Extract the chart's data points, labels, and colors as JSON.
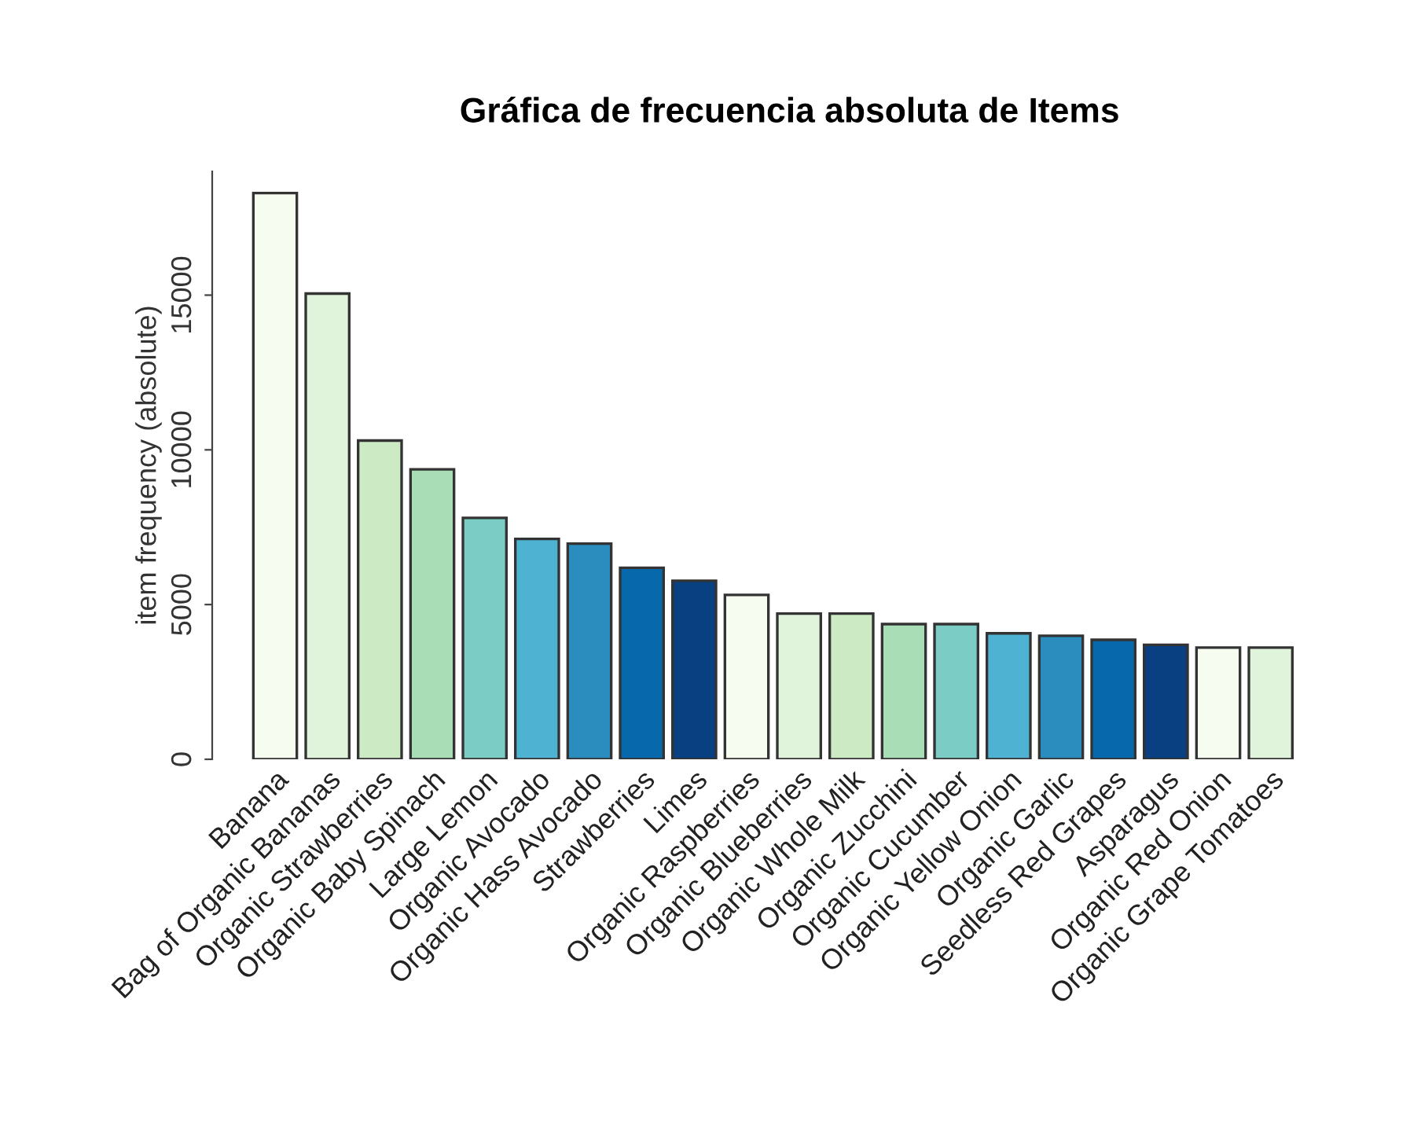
{
  "chart_data": {
    "type": "bar",
    "title": "Gráfica de frecuencia absoluta de Items",
    "ylabel": "item frequency (absolute)",
    "categories": [
      "Banana",
      "Bag of Organic Bananas",
      "Organic Strawberries",
      "Organic Baby Spinach",
      "Large Lemon",
      "Organic Avocado",
      "Organic Hass Avocado",
      "Strawberries",
      "Limes",
      "Organic Raspberries",
      "Organic Blueberries",
      "Organic Whole Milk",
      "Organic Zucchini",
      "Organic Cucumber",
      "Organic Yellow Onion",
      "Organic Garlic",
      "Seedless Red Grapes",
      "Asparagus",
      "Organic Red Onion",
      "Organic Grape Tomatoes"
    ],
    "values": [
      18300,
      15050,
      10300,
      9370,
      7800,
      7120,
      6970,
      6190,
      5770,
      5310,
      4710,
      4710,
      4370,
      4370,
      4070,
      3990,
      3860,
      3700,
      3610,
      3610
    ],
    "colors": [
      "#f7fcf0",
      "#e0f3db",
      "#ccebc5",
      "#a8ddb5",
      "#7bccc4",
      "#4eb3d3",
      "#2b8cbe",
      "#0868ac",
      "#084081",
      "#f7fcf0",
      "#e0f3db",
      "#ccebc5",
      "#a8ddb5",
      "#7bccc4",
      "#4eb3d3",
      "#2b8cbe",
      "#0868ac",
      "#084081",
      "#f7fcf0",
      "#e0f3db"
    ],
    "ylim": [
      0,
      19000
    ],
    "yticks": [
      0,
      5000,
      10000,
      15000
    ],
    "grid": false,
    "legend": false
  }
}
